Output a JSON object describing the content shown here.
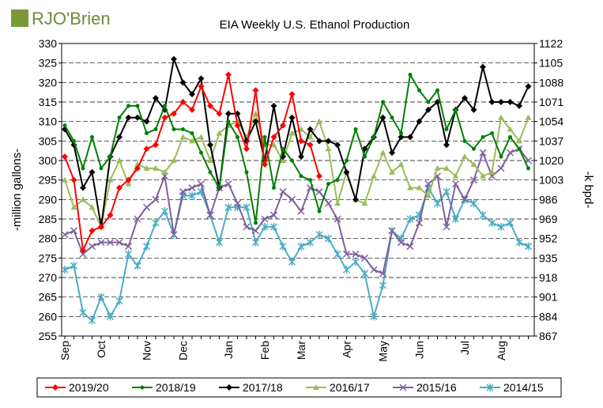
{
  "logo": "RJO'Brien",
  "chart_data": {
    "type": "line",
    "title": "EIA Weekly U.S. Ethanol Production",
    "ylabel": "-million gallons-",
    "y2label": "-k bpd-",
    "categories": [
      "Sep",
      null,
      null,
      null,
      "Oct",
      null,
      null,
      null,
      null,
      "Nov",
      null,
      null,
      null,
      "Dec",
      null,
      null,
      null,
      null,
      "Jan",
      null,
      null,
      null,
      "Feb",
      null,
      null,
      null,
      "Mar",
      null,
      null,
      null,
      null,
      "Apr",
      null,
      null,
      null,
      "May",
      null,
      null,
      null,
      "Jun",
      null,
      null,
      null,
      null,
      "Jul",
      null,
      null,
      null,
      "Aug",
      null,
      null,
      null
    ],
    "ylim": [
      255,
      330
    ],
    "yticks": [
      255,
      260,
      265,
      270,
      275,
      280,
      285,
      290,
      295,
      300,
      305,
      310,
      315,
      320,
      325,
      330
    ],
    "y2lim": [
      867,
      1122
    ],
    "y2ticks": [
      867,
      884,
      901,
      918,
      935,
      952,
      969,
      986,
      1003,
      1020,
      1037,
      1054,
      1071,
      1088,
      1105,
      1122
    ],
    "grid": true,
    "series": [
      {
        "name": "2019/20",
        "color": "#ff0000",
        "marker": "diamond",
        "values": [
          301,
          295,
          277,
          282,
          283,
          286,
          293,
          295,
          298,
          303,
          304,
          311,
          312,
          315,
          313,
          319,
          314,
          312,
          322,
          309,
          303,
          318,
          299,
          306,
          309,
          317,
          305,
          304,
          296,
          null,
          null,
          null,
          null,
          null,
          null,
          null,
          null,
          null,
          null,
          null,
          null,
          null,
          null,
          null,
          null,
          null,
          null,
          null,
          null,
          null,
          null,
          null
        ]
      },
      {
        "name": "2018/19",
        "color": "#008000",
        "marker": "circle",
        "values": [
          309,
          305,
          298,
          306,
          298,
          301,
          311,
          314,
          314,
          307,
          308,
          314,
          308,
          308,
          307,
          302,
          297,
          293,
          310,
          306,
          297,
          284,
          306,
          293,
          303,
          300,
          296,
          295,
          287,
          294,
          295,
          300,
          308,
          301,
          306,
          315,
          311,
          307,
          322,
          318,
          315,
          318,
          308,
          313,
          305,
          303,
          306,
          307,
          301,
          306,
          303,
          298
        ]
      },
      {
        "name": "2017/18",
        "color": "#000000",
        "marker": "diamond",
        "values": [
          308,
          304,
          293,
          297,
          283,
          301,
          306,
          311,
          311,
          310,
          316,
          313,
          326,
          320,
          317,
          321,
          304,
          293,
          312,
          312,
          305,
          310,
          300,
          314,
          301,
          311,
          301,
          308,
          305,
          305,
          304,
          297,
          290,
          303,
          306,
          311,
          302,
          306,
          306,
          310,
          313,
          315,
          304,
          313,
          316,
          313,
          324,
          315,
          315,
          315,
          314,
          319
        ]
      },
      {
        "name": "2016/17",
        "color": "#9bbb59",
        "marker": "triangle",
        "values": [
          295,
          288,
          290,
          288,
          283,
          295,
          300,
          294,
          299,
          298,
          298,
          297,
          300,
          306,
          305,
          306,
          300,
          307,
          309,
          310,
          306,
          312,
          304,
          304,
          300,
          307,
          308,
          306,
          310,
          303,
          289,
          297,
          290,
          289,
          296,
          302,
          297,
          299,
          293,
          293,
          291,
          298,
          298,
          296,
          301,
          299,
          296,
          297,
          311,
          308,
          305,
          311
        ]
      },
      {
        "name": "2015/16",
        "color": "#7f5f9f",
        "marker": "x",
        "values": [
          281,
          282,
          276,
          278,
          279,
          279,
          279,
          278,
          285,
          288,
          290,
          296,
          281,
          292,
          293,
          294,
          286,
          293,
          294,
          289,
          283,
          282,
          285,
          286,
          292,
          290,
          287,
          293,
          292,
          289,
          285,
          276,
          276,
          275,
          272,
          271,
          282,
          279,
          278,
          284,
          294,
          296,
          283,
          294,
          290,
          295,
          302,
          296,
          298,
          302,
          303,
          300
        ]
      },
      {
        "name": "2014/15",
        "color": "#4bacc6",
        "marker": "star",
        "values": [
          272,
          273,
          261,
          259,
          265,
          260,
          264,
          276,
          273,
          278,
          284,
          287,
          281,
          291,
          291,
          292,
          286,
          279,
          288,
          288,
          288,
          279,
          283,
          283,
          278,
          274,
          278,
          279,
          281,
          280,
          276,
          272,
          274,
          271,
          260,
          268,
          282,
          280,
          285,
          286,
          293,
          289,
          292,
          285,
          290,
          289,
          286,
          284,
          283,
          284,
          279,
          278
        ]
      }
    ]
  }
}
